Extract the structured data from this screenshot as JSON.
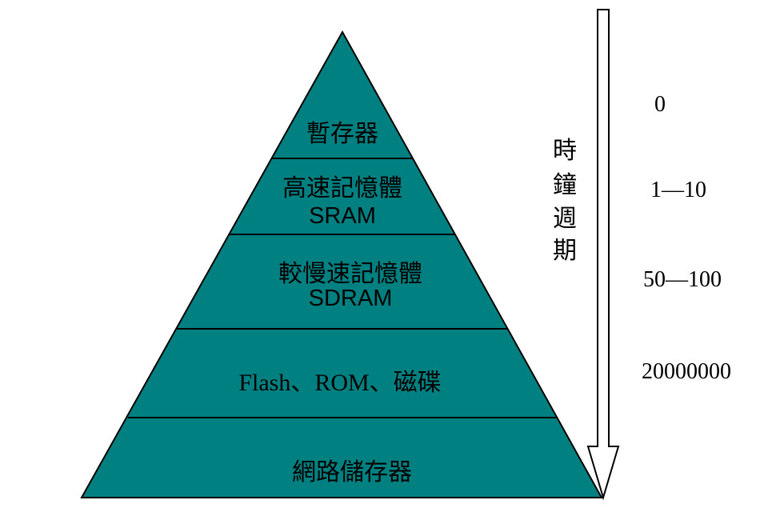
{
  "diagram": {
    "fill_color": "#008080",
    "border_color": "#000000",
    "levels": [
      {
        "name": "暫存器",
        "sub": "",
        "cycles": "0"
      },
      {
        "name": "高速記憶體",
        "sub": "SRAM",
        "cycles": "1—10"
      },
      {
        "name": "較慢速記憶體",
        "sub": "SDRAM",
        "cycles": "50—100"
      },
      {
        "name": "Flash、ROM、磁碟",
        "sub": "",
        "cycles": "20000000"
      },
      {
        "name": "網路儲存器",
        "sub": ""
      }
    ],
    "arrow_label_chars": [
      "時",
      "鐘",
      "週",
      "期"
    ]
  }
}
